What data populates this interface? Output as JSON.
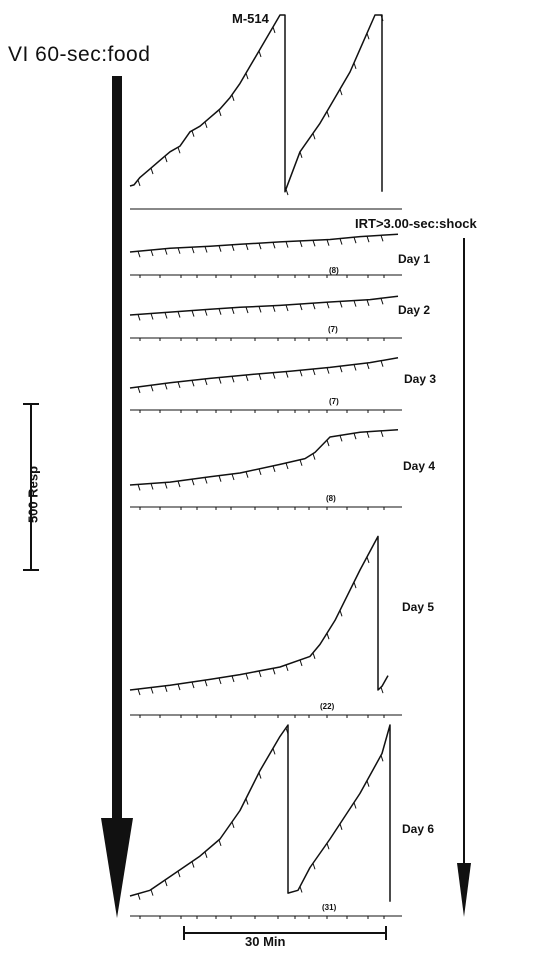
{
  "subject_label": "M-514",
  "baseline_condition_label": "VI 60-sec:food",
  "shock_condition_label": "IRT>3.00-sec:shock",
  "response_scale_label": "500 Resp",
  "time_scale_label": "30 Min",
  "chart_data": {
    "type": "line",
    "title": "",
    "xlabel": "",
    "ylabel": "",
    "records": [
      {
        "day": "",
        "shocks": "",
        "trace": [
          [
            0,
            0
          ],
          [
            4,
            0.2
          ],
          [
            10,
            1.5
          ],
          [
            20,
            3
          ],
          [
            30,
            4.5
          ],
          [
            40,
            6
          ],
          [
            50,
            7
          ],
          [
            60,
            9.5
          ],
          [
            70,
            10.5
          ],
          [
            80,
            12
          ],
          [
            90,
            13.5
          ],
          [
            100,
            15.5
          ],
          [
            110,
            18
          ],
          [
            120,
            21
          ],
          [
            130,
            24
          ],
          [
            140,
            27
          ],
          [
            150,
            30
          ],
          [
            155,
            30
          ],
          [
            155,
            -1
          ],
          [
            170,
            6
          ],
          [
            190,
            11
          ],
          [
            200,
            14
          ],
          [
            210,
            17
          ],
          [
            220,
            20
          ],
          [
            230,
            24
          ],
          [
            245,
            30
          ],
          [
            252,
            30
          ],
          [
            252,
            -1
          ]
        ]
      },
      {
        "day": "Day 1",
        "shocks": "(8)",
        "trace": [
          [
            0,
            0
          ],
          [
            40,
            0.8
          ],
          [
            80,
            1.2
          ],
          [
            110,
            1.6
          ],
          [
            150,
            2.1
          ],
          [
            200,
            2.6
          ],
          [
            230,
            3.2
          ],
          [
            268,
            3.7
          ]
        ]
      },
      {
        "day": "Day 2",
        "shocks": "(7)",
        "trace": [
          [
            0,
            0
          ],
          [
            40,
            0.6
          ],
          [
            80,
            1.2
          ],
          [
            110,
            1.6
          ],
          [
            150,
            2
          ],
          [
            200,
            2.7
          ],
          [
            240,
            3.2
          ],
          [
            268,
            3.9
          ]
        ]
      },
      {
        "day": "Day 3",
        "shocks": "(7)",
        "trace": [
          [
            0,
            0
          ],
          [
            40,
            1.1
          ],
          [
            80,
            2
          ],
          [
            120,
            2.8
          ],
          [
            160,
            3.5
          ],
          [
            200,
            4.3
          ],
          [
            240,
            5.3
          ],
          [
            268,
            6.3
          ]
        ]
      },
      {
        "day": "Day 4",
        "shocks": "(8)",
        "trace": [
          [
            0,
            0
          ],
          [
            40,
            0.6
          ],
          [
            80,
            1.7
          ],
          [
            110,
            2.5
          ],
          [
            150,
            4.3
          ],
          [
            175,
            5.5
          ],
          [
            185,
            6.8
          ],
          [
            200,
            10
          ],
          [
            230,
            11
          ],
          [
            268,
            11.5
          ]
        ]
      },
      {
        "day": "Day 5",
        "shocks": "(22)",
        "trace": [
          [
            0,
            0
          ],
          [
            40,
            1
          ],
          [
            80,
            2.2
          ],
          [
            110,
            3.2
          ],
          [
            150,
            4.8
          ],
          [
            180,
            7
          ],
          [
            190,
            9.5
          ],
          [
            205,
            14.5
          ],
          [
            230,
            25
          ],
          [
            248,
            32
          ],
          [
            248,
            0
          ],
          [
            252,
            0.8
          ],
          [
            258,
            3
          ]
        ]
      },
      {
        "day": "Day 6",
        "shocks": "(31)",
        "trace": [
          [
            0,
            0
          ],
          [
            20,
            1
          ],
          [
            40,
            3.4
          ],
          [
            70,
            7
          ],
          [
            90,
            10
          ],
          [
            110,
            15
          ],
          [
            130,
            22
          ],
          [
            150,
            28
          ],
          [
            158,
            30
          ],
          [
            158,
            0.5
          ],
          [
            168,
            1
          ],
          [
            180,
            5
          ],
          [
            200,
            10
          ],
          [
            230,
            18
          ],
          [
            252,
            25
          ],
          [
            260,
            30
          ],
          [
            260,
            -1
          ]
        ]
      }
    ]
  }
}
